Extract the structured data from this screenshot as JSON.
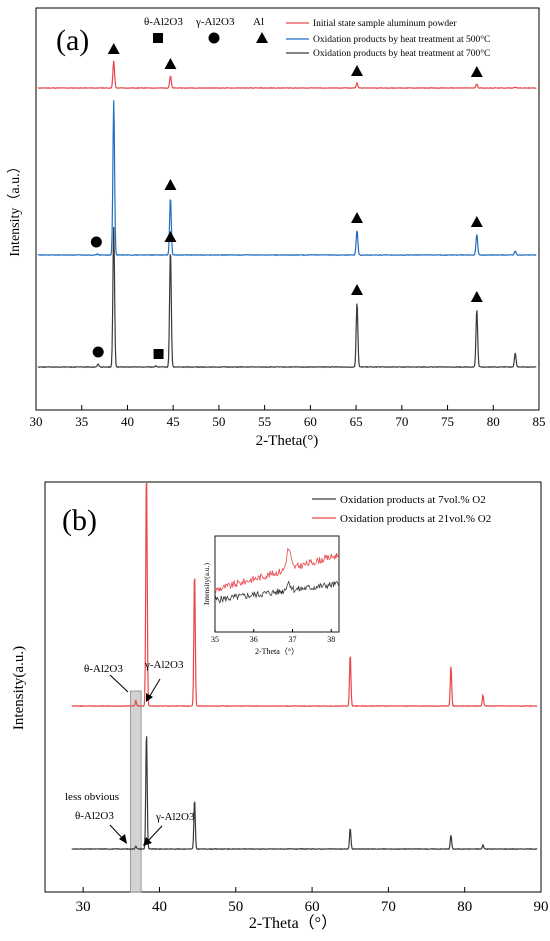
{
  "chart_data": [
    {
      "panel": "(a)",
      "type": "line",
      "xlabel": "2-Theta(°)",
      "ylabel": "Intensity（a.u.）",
      "xlim": [
        30,
        85
      ],
      "xticks": [
        30,
        35,
        40,
        45,
        50,
        55,
        60,
        65,
        70,
        75,
        80,
        85
      ],
      "phase_legend": [
        {
          "label": "θ-Al2O3",
          "symbol": "square"
        },
        {
          "label": "γ-Al2O3",
          "symbol": "circle"
        },
        {
          "label": "Al",
          "symbol": "triangle"
        }
      ],
      "series": [
        {
          "name": "Initial state sample aluminum powder",
          "color": "#e8474c",
          "peaks": [
            {
              "x": 38.5,
              "h": 27
            },
            {
              "x": 44.7,
              "h": 12
            },
            {
              "x": 65.1,
              "h": 5
            },
            {
              "x": 78.2,
              "h": 4
            },
            {
              "x": 82.4,
              "h": 1
            }
          ],
          "markers": [
            {
              "x": 38.5,
              "symbol": "triangle"
            },
            {
              "x": 44.7,
              "symbol": "triangle"
            },
            {
              "x": 65.1,
              "symbol": "triangle"
            },
            {
              "x": 78.2,
              "symbol": "triangle"
            }
          ]
        },
        {
          "name": "Oxidation products by heat treatment at 500°C",
          "color": "#1f6fbf",
          "peaks": [
            {
              "x": 36.7,
              "h": 1
            },
            {
              "x": 38.5,
              "h": 155
            },
            {
              "x": 44.7,
              "h": 58
            },
            {
              "x": 65.1,
              "h": 25
            },
            {
              "x": 78.2,
              "h": 21
            },
            {
              "x": 82.4,
              "h": 4
            }
          ],
          "markers": [
            {
              "x": 36.6,
              "symbol": "circle"
            },
            {
              "x": 44.7,
              "symbol": "triangle"
            },
            {
              "x": 65.1,
              "symbol": "triangle"
            },
            {
              "x": 78.2,
              "symbol": "triangle"
            }
          ]
        },
        {
          "name": "Oxidation products by heat treatment at 700°C",
          "color": "#3a3a3a",
          "peaks": [
            {
              "x": 36.8,
              "h": 3
            },
            {
              "x": 38.5,
              "h": 140
            },
            {
              "x": 43.1,
              "h": 1
            },
            {
              "x": 44.7,
              "h": 118
            },
            {
              "x": 65.1,
              "h": 65
            },
            {
              "x": 78.2,
              "h": 58
            },
            {
              "x": 82.4,
              "h": 14
            }
          ],
          "markers": [
            {
              "x": 36.8,
              "symbol": "circle"
            },
            {
              "x": 43.4,
              "symbol": "square"
            },
            {
              "x": 44.7,
              "symbol": "triangle"
            },
            {
              "x": 65.1,
              "symbol": "triangle"
            },
            {
              "x": 78.2,
              "symbol": "triangle"
            }
          ]
        }
      ]
    },
    {
      "panel": "(b)",
      "type": "line",
      "xlabel": "2-Theta（°）",
      "ylabel": "Intensity(a.u.)",
      "xlim": [
        25,
        90
      ],
      "xticks": [
        30,
        40,
        50,
        60,
        70,
        80,
        90
      ],
      "series": [
        {
          "name": "Oxidation products at 7vol.% O2",
          "color": "#3a3a3a",
          "peaks": [
            {
              "x": 36.9,
              "h": 3
            },
            {
              "x": 38.3,
              "h": 118
            },
            {
              "x": 44.6,
              "h": 50
            },
            {
              "x": 65.0,
              "h": 21
            },
            {
              "x": 78.2,
              "h": 14
            },
            {
              "x": 82.4,
              "h": 4
            }
          ]
        },
        {
          "name": "Oxidation products at 21vol.% O2",
          "color": "#e8474c",
          "peaks": [
            {
              "x": 36.9,
              "h": 5
            },
            {
              "x": 38.3,
              "h": 240
            },
            {
              "x": 44.6,
              "h": 135
            },
            {
              "x": 65.0,
              "h": 52
            },
            {
              "x": 78.2,
              "h": 40
            },
            {
              "x": 82.4,
              "h": 11
            }
          ]
        }
      ],
      "annotations": {
        "theta_red": "θ-Al2O3",
        "gamma_red": "γ-Al2O3",
        "less_obvious": "less obvious",
        "theta_black": "θ-Al2O3",
        "gamma_black": "γ-Al2O3"
      },
      "highlight_band": {
        "x_start": 36.2,
        "x_end": 37.6
      },
      "inset": {
        "xlabel": "2-Theta（°）",
        "ylabel": "Intensity(a.u.)",
        "xlim": [
          35,
          38.2
        ],
        "xticks": [
          35,
          36,
          37,
          38
        ]
      }
    }
  ]
}
